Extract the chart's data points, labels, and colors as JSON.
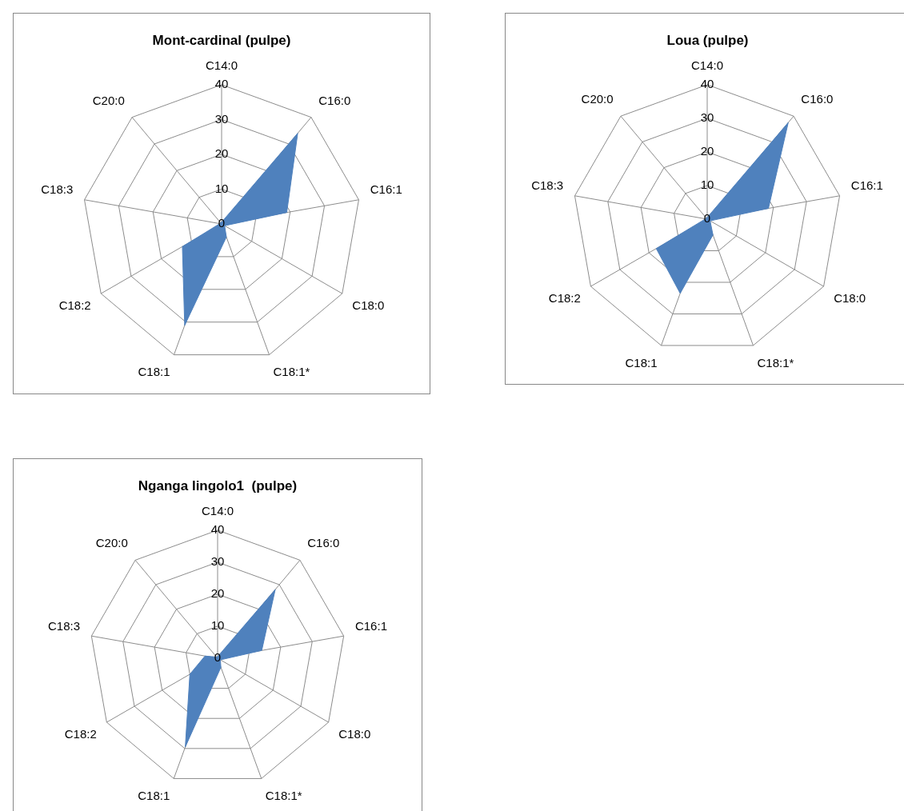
{
  "chart_data": [
    {
      "type": "radar",
      "title": "Mont-cardinal (pulpe)",
      "categories": [
        "C14:0",
        "C16:0",
        "C16:1",
        "C18:0",
        "C18:1*",
        "C18:1",
        "C18:2",
        "C18:3",
        "C20:0"
      ],
      "series": [
        {
          "color": "#4f81bd",
          "values": [
            0.5,
            34,
            19,
            1,
            4,
            31,
            13,
            0.5,
            0.5
          ]
        }
      ],
      "ylim": [
        0,
        40
      ],
      "yticks": [
        0,
        10,
        20,
        30,
        40
      ],
      "grid": true,
      "marker": "none"
    },
    {
      "type": "radar",
      "title": "Loua (pulpe)",
      "categories": [
        "C14:0",
        "C16:0",
        "C16:1",
        "C18:0",
        "C18:1*",
        "C18:1",
        "C18:2",
        "C18:3",
        "C20:0"
      ],
      "series": [
        {
          "color": "#4f81bd",
          "values": [
            0.5,
            37.5,
            18.5,
            1,
            5,
            23.5,
            17.5,
            0.5,
            0.5
          ]
        }
      ],
      "ylim": [
        0,
        40
      ],
      "yticks": [
        0,
        10,
        20,
        30,
        40
      ],
      "grid": true,
      "marker": "none"
    },
    {
      "type": "radar",
      "title": "Nganga lingolo1  (pulpe)",
      "categories": [
        "C14:0",
        "C16:0",
        "C16:1",
        "C18:0",
        "C18:1*",
        "C18:1",
        "C18:2",
        "C18:3",
        "C20:0"
      ],
      "series": [
        {
          "color": "#4f81bd",
          "values": [
            0.5,
            28,
            14,
            1,
            3,
            29.5,
            10,
            4,
            0.5
          ]
        }
      ],
      "ylim": [
        0,
        40
      ],
      "yticks": [
        0,
        10,
        20,
        30,
        40
      ],
      "grid": true,
      "marker": "none"
    }
  ]
}
